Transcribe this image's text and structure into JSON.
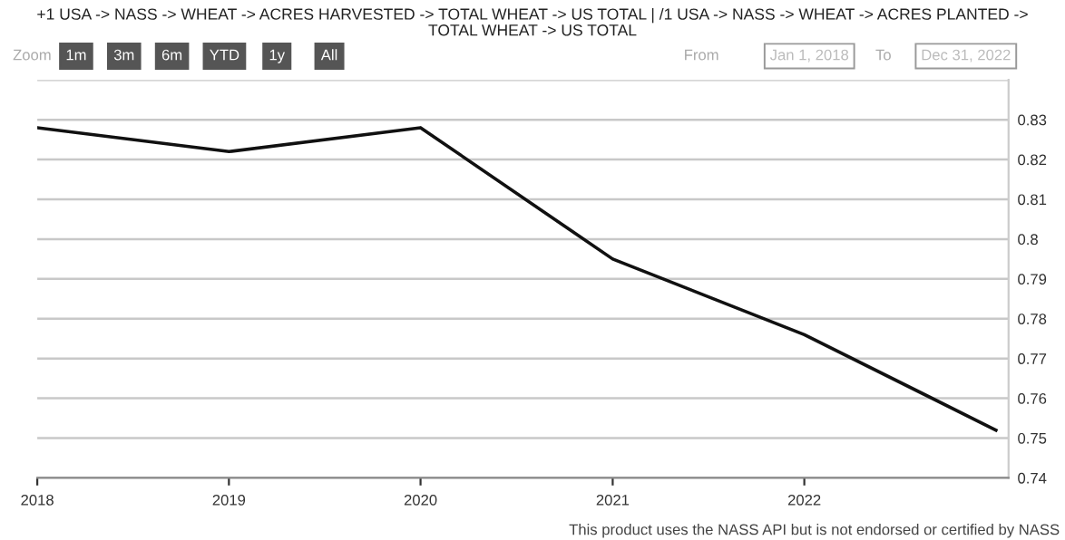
{
  "chart_data": {
    "type": "line",
    "title": "+1 USA -> NASS -> WHEAT -> ACRES HARVESTED -> TOTAL WHEAT -> US TOTAL | /1 USA -> NASS -> WHEAT -> ACRES PLANTED ->\nTOTAL WHEAT -> US TOTAL",
    "x": [
      "2018-01-01",
      "2019-01-01",
      "2020-01-01",
      "2021-01-01",
      "2022-01-01",
      "2023-01-01"
    ],
    "series": [
      {
        "color": "#111111",
        "values": [
          0.828,
          0.822,
          0.828,
          0.795,
          0.776,
          0.752
        ]
      }
    ],
    "xlim": [
      "2018-01-01",
      "2023-01-25"
    ],
    "xticks": [
      {
        "value": "2018-01-01",
        "label": "2018"
      },
      {
        "value": "2019-01-01",
        "label": "2019"
      },
      {
        "value": "2020-01-01",
        "label": "2020"
      },
      {
        "value": "2021-01-01",
        "label": "2021"
      },
      {
        "value": "2022-01-01",
        "label": "2022"
      }
    ],
    "ylim": [
      0.74,
      0.84
    ],
    "yticks": [
      0.74,
      0.75,
      0.76,
      0.77,
      0.78,
      0.79,
      {
        "value": 0.8,
        "label": "0.8"
      },
      0.81,
      0.82,
      0.83,
      {
        "value": 0.84,
        "label": null
      }
    ],
    "grid": "y",
    "marker": "none",
    "line_style": "solid",
    "annotations": [
      "Zoom",
      "1m",
      "3m",
      "6m",
      "YTD",
      "1y",
      "All",
      "From",
      "Jan 1, 2018",
      "To",
      "Dec 31, 2022",
      "This product uses the NASS API but is not endorsed or certified by NASS"
    ]
  }
}
